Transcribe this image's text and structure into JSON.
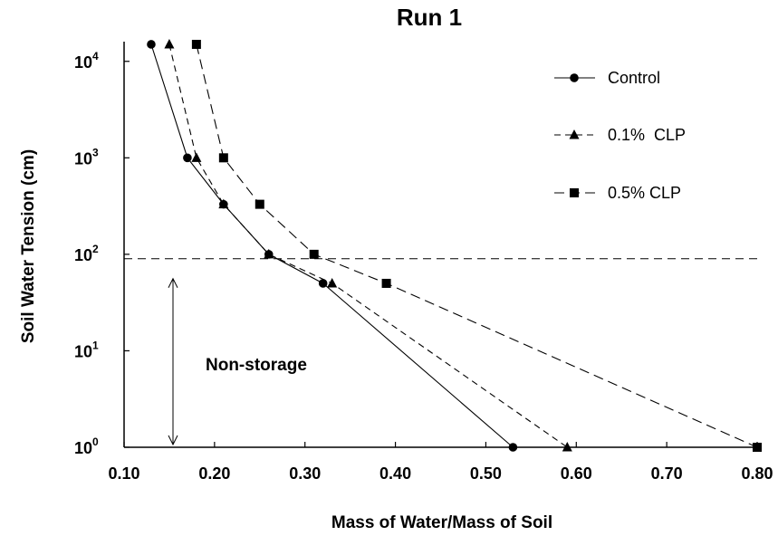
{
  "chart_data": {
    "type": "line",
    "title": "Run 1",
    "xlabel": "Mass of Water/Mass of Soil",
    "ylabel": "Soil Water Tension (cm)",
    "xlim": [
      0.1,
      0.8
    ],
    "ylim": [
      1,
      20000
    ],
    "y_scale": "log",
    "x_ticks": [
      "0.10",
      "0.20",
      "0.30",
      "0.40",
      "0.50",
      "0.60",
      "0.70",
      "0.80"
    ],
    "y_ticks": [
      {
        "base": "10",
        "exp": "0",
        "value": 1
      },
      {
        "base": "10",
        "exp": "1",
        "value": 10
      },
      {
        "base": "10",
        "exp": "2",
        "value": 100
      },
      {
        "base": "10",
        "exp": "3",
        "value": 1000
      },
      {
        "base": "10",
        "exp": "4",
        "value": 10000
      }
    ],
    "grid": false,
    "legend_position": "top-right",
    "series": [
      {
        "name": "Control",
        "marker": "circle",
        "line_style": "solid",
        "x": [
          0.13,
          0.17,
          0.21,
          0.26,
          0.32,
          0.53
        ],
        "y": [
          15000,
          1000,
          330,
          100,
          50,
          1
        ]
      },
      {
        "name": "0.1%  CLP",
        "marker": "triangle",
        "line_style": "dashed",
        "x": [
          0.15,
          0.18,
          0.21,
          0.26,
          0.33,
          0.59
        ],
        "y": [
          15000,
          1000,
          330,
          100,
          50,
          1
        ]
      },
      {
        "name": "0.5% CLP",
        "marker": "square",
        "line_style": "long-dashed",
        "x": [
          0.18,
          0.21,
          0.25,
          0.31,
          0.39,
          0.8
        ],
        "y": [
          15000,
          1000,
          330,
          100,
          50,
          1
        ]
      }
    ],
    "reference_line": {
      "orientation": "horizontal",
      "value": 90,
      "style": "dashed"
    },
    "annotation": {
      "text": "Non-storage",
      "arrow_from": 1,
      "arrow_to": 90
    }
  }
}
